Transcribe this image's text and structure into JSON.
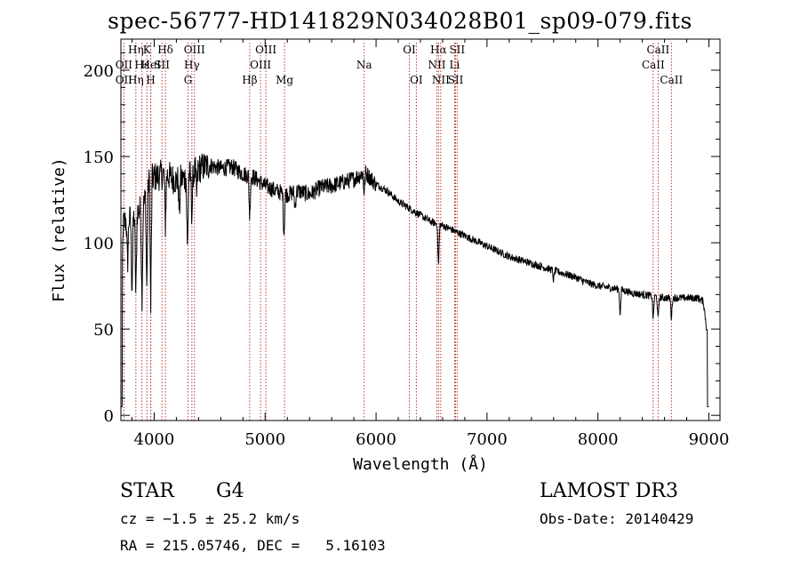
{
  "title": "spec-56777-HD141829N034028B01_sp09-079.fits",
  "info": {
    "class": "STAR",
    "subclass": "G4",
    "survey": "LAMOST DR3",
    "cz": "cz = −1.5 ± 25.2 km/s",
    "obs_date": "Obs-Date: 20140429",
    "radec": "RA = 215.05746, DEC =   5.16103"
  },
  "chart_data": {
    "type": "line",
    "title": "spec-56777-HD141829N034028B01_sp09-079.fits",
    "xlabel": "Wavelength (Å)",
    "ylabel": "Flux (relative)",
    "xlim": [
      3700,
      9100
    ],
    "ylim": [
      -3,
      218
    ],
    "xticks": [
      4000,
      5000,
      6000,
      7000,
      8000,
      9000
    ],
    "yticks": [
      0,
      50,
      100,
      150,
      200
    ],
    "spectrum_envelope": [
      [
        3700,
        40
      ],
      [
        3720,
        110
      ],
      [
        3760,
        115
      ],
      [
        3800,
        112
      ],
      [
        3850,
        118
      ],
      [
        3900,
        120
      ],
      [
        3950,
        135
      ],
      [
        4000,
        138
      ],
      [
        4100,
        140
      ],
      [
        4200,
        136
      ],
      [
        4300,
        138
      ],
      [
        4400,
        143
      ],
      [
        4500,
        145
      ],
      [
        4600,
        143
      ],
      [
        4700,
        144
      ],
      [
        4800,
        140
      ],
      [
        4900,
        138
      ],
      [
        5000,
        133
      ],
      [
        5100,
        130
      ],
      [
        5200,
        128
      ],
      [
        5300,
        130
      ],
      [
        5400,
        128
      ],
      [
        5500,
        132
      ],
      [
        5600,
        133
      ],
      [
        5700,
        135
      ],
      [
        5800,
        137
      ],
      [
        5900,
        141
      ],
      [
        6000,
        134
      ],
      [
        6100,
        130
      ],
      [
        6200,
        124
      ],
      [
        6300,
        120
      ],
      [
        6400,
        116
      ],
      [
        6500,
        112
      ],
      [
        6600,
        110
      ],
      [
        6700,
        107
      ],
      [
        6800,
        104
      ],
      [
        6900,
        101
      ],
      [
        7000,
        98
      ],
      [
        7100,
        95
      ],
      [
        7200,
        92
      ],
      [
        7300,
        90
      ],
      [
        7400,
        88
      ],
      [
        7500,
        86
      ],
      [
        7600,
        84
      ],
      [
        7700,
        82
      ],
      [
        7800,
        80
      ],
      [
        7900,
        77
      ],
      [
        8000,
        75
      ],
      [
        8100,
        74
      ],
      [
        8200,
        73
      ],
      [
        8300,
        71
      ],
      [
        8400,
        70
      ],
      [
        8500,
        69
      ],
      [
        8600,
        68
      ],
      [
        8700,
        68
      ],
      [
        8800,
        68
      ],
      [
        8900,
        68
      ],
      [
        8950,
        66
      ],
      [
        9000,
        40
      ]
    ],
    "absorption_features": [
      {
        "x": 3760,
        "depth": 30
      },
      {
        "x": 3800,
        "depth": 40
      },
      {
        "x": 3835,
        "depth": 50
      },
      {
        "x": 3890,
        "depth": 55
      },
      {
        "x": 3934,
        "depth": 60
      },
      {
        "x": 3969,
        "depth": 75
      },
      {
        "x": 4101,
        "depth": 30
      },
      {
        "x": 4227,
        "depth": 20
      },
      {
        "x": 4300,
        "depth": 45
      },
      {
        "x": 4340,
        "depth": 25
      },
      {
        "x": 4383,
        "depth": 15
      },
      {
        "x": 4861,
        "depth": 25
      },
      {
        "x": 5170,
        "depth": 25
      },
      {
        "x": 5270,
        "depth": 10
      },
      {
        "x": 5893,
        "depth": 12
      },
      {
        "x": 6563,
        "depth": 25
      },
      {
        "x": 7600,
        "depth": 6
      },
      {
        "x": 8200,
        "depth": 15
      },
      {
        "x": 8498,
        "depth": 14
      },
      {
        "x": 8542,
        "depth": 14
      },
      {
        "x": 8662,
        "depth": 12
      }
    ],
    "line_markers": [
      {
        "label": "Hη",
        "x": 3835,
        "row": 0
      },
      {
        "label": "K",
        "x": 3934,
        "row": 0
      },
      {
        "label": "Hδ",
        "x": 4101,
        "row": 0
      },
      {
        "label": "OIII",
        "x": 4363,
        "row": 0
      },
      {
        "label": "OIII",
        "x": 5007,
        "row": 0
      },
      {
        "label": "OI",
        "x": 6300,
        "row": 0
      },
      {
        "label": "Hα",
        "x": 6563,
        "row": 0
      },
      {
        "label": "SII",
        "x": 6731,
        "row": 0
      },
      {
        "label": "CaII",
        "x": 8542,
        "row": 0
      },
      {
        "label": "OII",
        "x": 3727,
        "row": 1
      },
      {
        "label": "Hε",
        "x": 3890,
        "row": 1
      },
      {
        "label": "HeI",
        "x": 3970,
        "row": 1
      },
      {
        "label": "SII",
        "x": 4070,
        "row": 1
      },
      {
        "label": "Hγ",
        "x": 4340,
        "row": 1
      },
      {
        "label": "OIII",
        "x": 4959,
        "row": 1
      },
      {
        "label": "Na",
        "x": 5893,
        "row": 1
      },
      {
        "label": "NII",
        "x": 6548,
        "row": 1
      },
      {
        "label": "Li",
        "x": 6708,
        "row": 1
      },
      {
        "label": "CaII",
        "x": 8498,
        "row": 1
      },
      {
        "label": "OII",
        "x": 3727,
        "row": 2
      },
      {
        "label": "Hη",
        "x": 3835,
        "row": 2
      },
      {
        "label": "H",
        "x": 3969,
        "row": 2
      },
      {
        "label": "G",
        "x": 4305,
        "row": 2
      },
      {
        "label": "Hβ",
        "x": 4861,
        "row": 2
      },
      {
        "label": "Mg",
        "x": 5175,
        "row": 2
      },
      {
        "label": "OI",
        "x": 6363,
        "row": 2
      },
      {
        "label": "NII",
        "x": 6583,
        "row": 2
      },
      {
        "label": "SII",
        "x": 6717,
        "row": 2
      },
      {
        "label": "CaII",
        "x": 8662,
        "row": 2
      }
    ],
    "colors": {
      "axis": "#000000",
      "spectrum": "#000000",
      "markers": "#b22222"
    }
  }
}
